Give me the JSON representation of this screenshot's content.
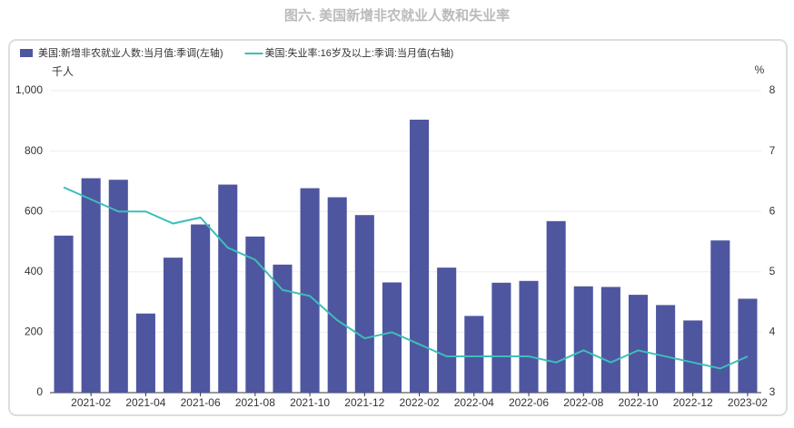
{
  "chart_data": {
    "type": "bar_line",
    "title": "图六. 美国新增非农就业人数和失业率",
    "y_unit": "千人",
    "y2_unit": "%",
    "categories": [
      null,
      "2021-02",
      null,
      "2021-04",
      null,
      "2021-06",
      null,
      "2021-08",
      null,
      "2021-10",
      null,
      "2021-12",
      null,
      "2022-02",
      null,
      "2022-04",
      null,
      "2022-06",
      null,
      "2022-08",
      null,
      "2022-10",
      null,
      "2022-12",
      null,
      "2023-02"
    ],
    "series": [
      {
        "name": "美国:新增非农就业人数:当月值:季调(左轴)",
        "type": "bar",
        "color": "#4e56a0",
        "values": [
          520,
          710,
          705,
          262,
          447,
          557,
          689,
          517,
          424,
          677,
          647,
          588,
          365,
          904,
          414,
          254,
          364,
          370,
          568,
          352,
          350,
          324,
          290,
          239,
          504,
          311
        ]
      },
      {
        "name": "美国:失业率:16岁及以上:季调:当月值(右轴)",
        "type": "line",
        "axis": "y2",
        "color": "#3dbfb8",
        "values": [
          6.4,
          6.2,
          6.0,
          6.0,
          5.8,
          5.9,
          5.4,
          5.2,
          4.7,
          4.6,
          4.2,
          3.9,
          4.0,
          3.8,
          3.6,
          3.6,
          3.6,
          3.6,
          3.5,
          3.7,
          3.5,
          3.7,
          3.6,
          3.5,
          3.4,
          3.6
        ]
      }
    ],
    "ylim": [
      0,
      1000
    ],
    "yticks": [
      0,
      200,
      400,
      600,
      800,
      {
        "value": 1000,
        "label": "1,000"
      }
    ],
    "y2lim": [
      3,
      8
    ],
    "y2ticks": [
      3,
      4,
      5,
      6,
      7,
      8
    ],
    "grid": true,
    "legend": "top-left"
  }
}
